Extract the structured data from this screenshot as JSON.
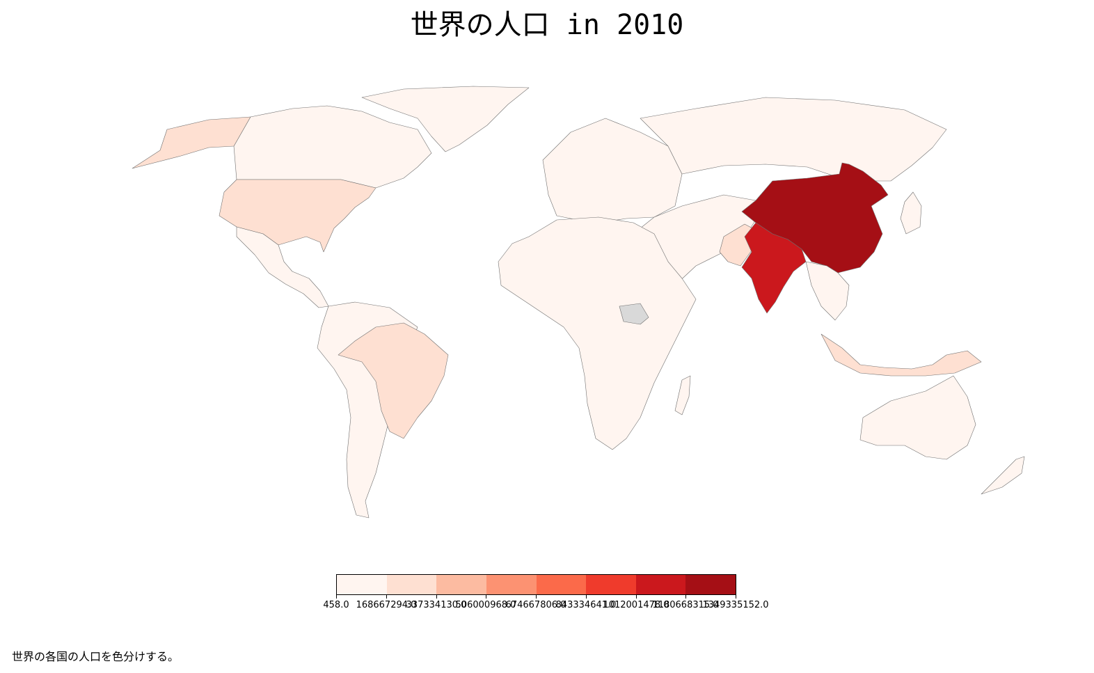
{
  "title": "世界の人口 in 2010",
  "caption": "世界の各国の人口を色分けする。",
  "legend": {
    "colors": [
      "#fff5f0",
      "#fee0d2",
      "#fcbba1",
      "#fc9272",
      "#fb6a4a",
      "#ef3b2c",
      "#cb181d",
      "#a50f15"
    ],
    "tick_labels": [
      "458.0",
      "168667294.0",
      "337334130.0",
      "506000968.0",
      "674667806.0",
      "843334641.0",
      "1012001478.0",
      "1180668315.0",
      "1349335152.0"
    ]
  },
  "map_data": {
    "type": "choropleth",
    "year": 2010,
    "highlighted": [
      {
        "name": "China",
        "class": 8
      },
      {
        "name": "India",
        "class": 7
      },
      {
        "name": "United States",
        "class": 2
      },
      {
        "name": "Brazil",
        "class": 2
      },
      {
        "name": "Indonesia",
        "class": 2
      },
      {
        "name": "Pakistan",
        "class": 2
      }
    ],
    "no_data_color": "#d9d9d9"
  }
}
